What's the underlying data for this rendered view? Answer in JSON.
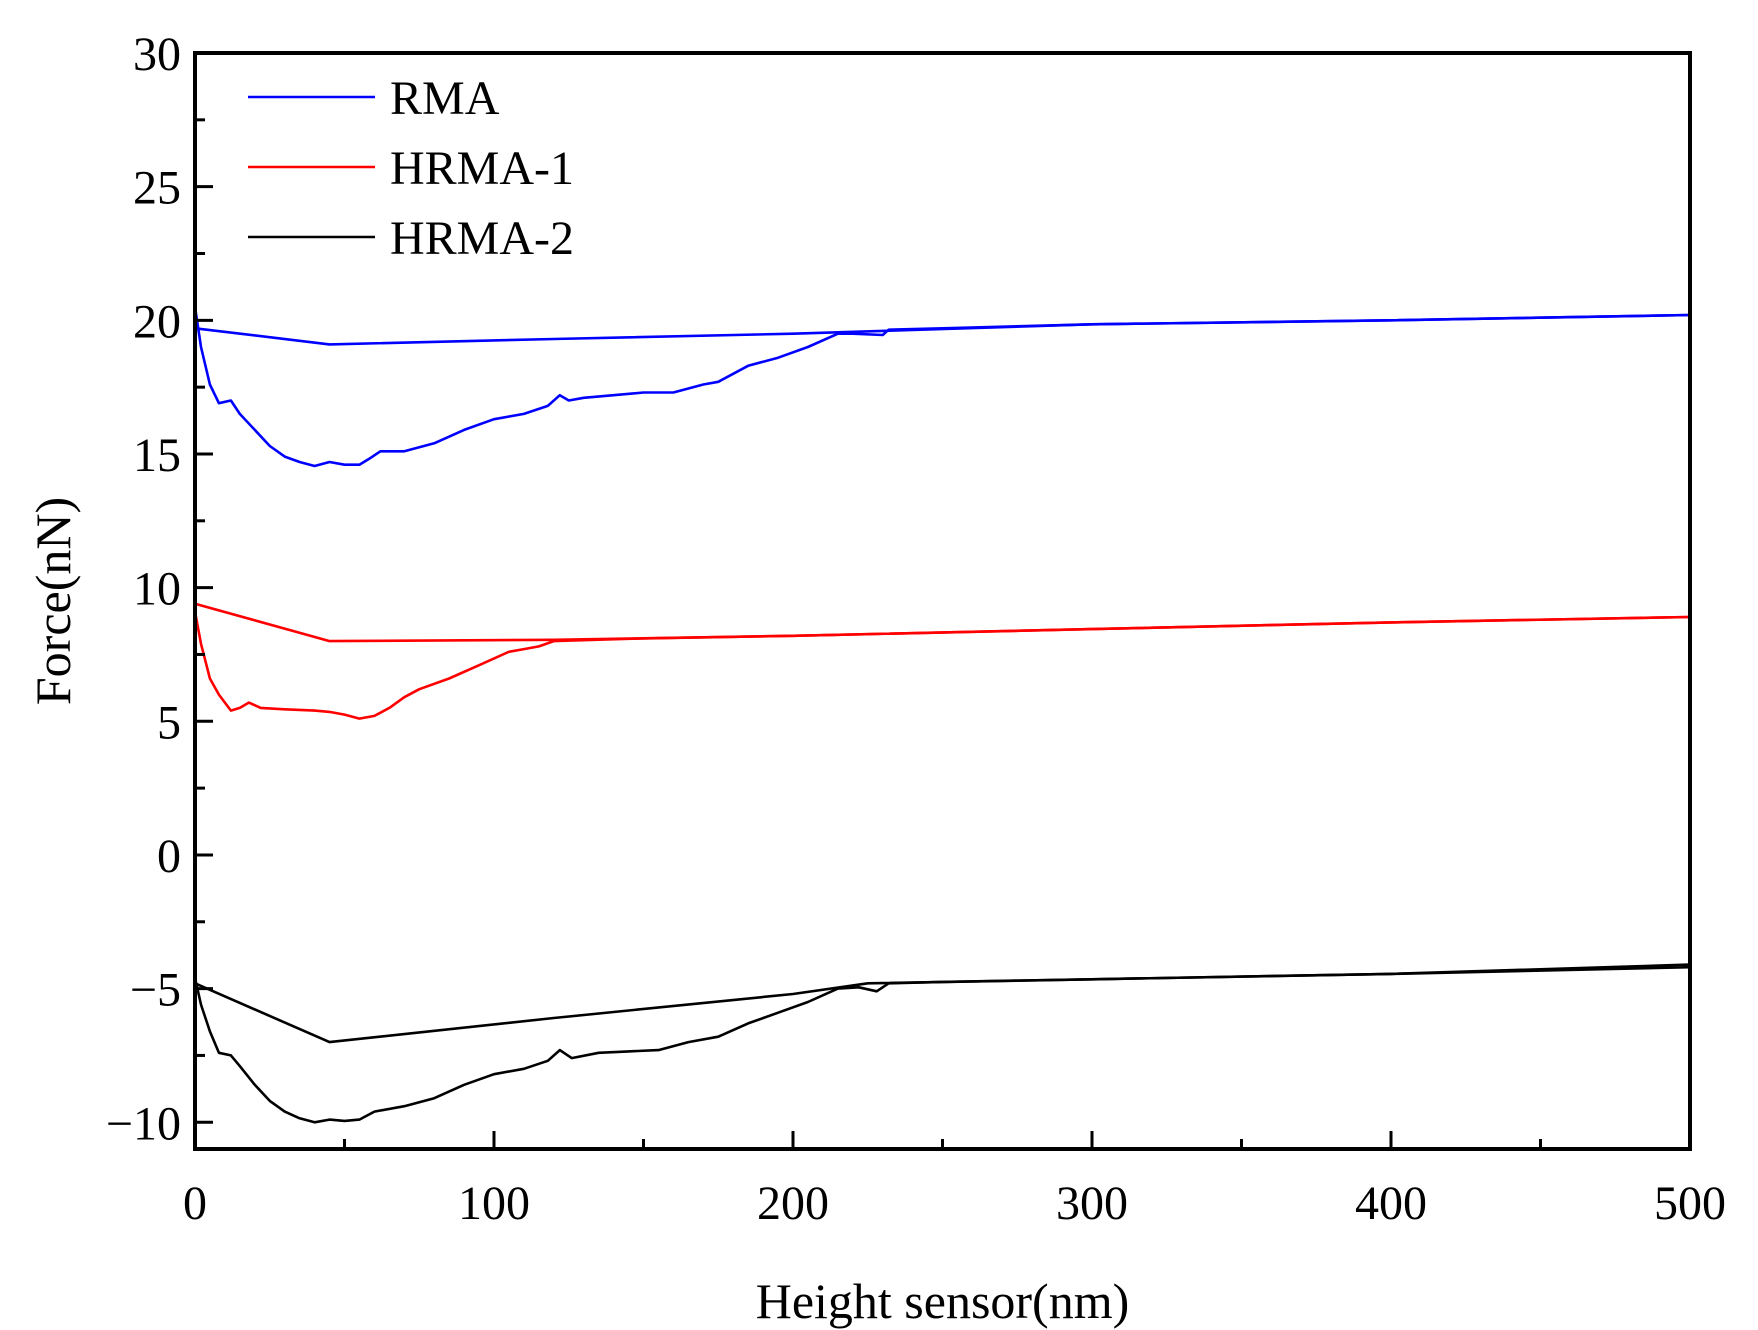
{
  "chart_data": {
    "type": "line",
    "xlabel": "Height sensor(nm)",
    "ylabel": "Force(nN)",
    "xlim": [
      0,
      500
    ],
    "ylim": [
      -11,
      30
    ],
    "x_ticks": [
      0,
      100,
      200,
      300,
      400,
      500
    ],
    "x_tick_labels": [
      "0",
      "100",
      "200",
      "300",
      "400",
      "500"
    ],
    "y_ticks": [
      -10,
      -5,
      0,
      5,
      10,
      15,
      20,
      25,
      30
    ],
    "y_tick_labels": [
      "−10",
      "−5",
      "0",
      "5",
      "10",
      "15",
      "20",
      "25",
      "30"
    ],
    "grid": false,
    "legend_position": "top-left",
    "series": [
      {
        "name": "RMA",
        "color": "#0000ff",
        "approach": [
          [
            0,
            19.7
          ],
          [
            45,
            19.1
          ],
          [
            120,
            19.3
          ],
          [
            200,
            19.5
          ],
          [
            300,
            19.85
          ],
          [
            400,
            20.0
          ],
          [
            500,
            20.2
          ]
        ],
        "retract": [
          [
            0,
            20.5
          ],
          [
            2,
            19.0
          ],
          [
            5,
            17.6
          ],
          [
            8,
            16.9
          ],
          [
            12,
            17.0
          ],
          [
            15,
            16.5
          ],
          [
            20,
            15.9
          ],
          [
            25,
            15.3
          ],
          [
            30,
            14.9
          ],
          [
            35,
            14.7
          ],
          [
            40,
            14.55
          ],
          [
            45,
            14.7
          ],
          [
            50,
            14.6
          ],
          [
            55,
            14.6
          ],
          [
            58,
            14.8
          ],
          [
            62,
            15.1
          ],
          [
            70,
            15.1
          ],
          [
            80,
            15.4
          ],
          [
            90,
            15.9
          ],
          [
            100,
            16.3
          ],
          [
            110,
            16.5
          ],
          [
            118,
            16.8
          ],
          [
            122,
            17.2
          ],
          [
            125,
            17.0
          ],
          [
            130,
            17.1
          ],
          [
            140,
            17.2
          ],
          [
            150,
            17.3
          ],
          [
            160,
            17.3
          ],
          [
            170,
            17.6
          ],
          [
            175,
            17.7
          ],
          [
            185,
            18.3
          ],
          [
            195,
            18.6
          ],
          [
            205,
            19.0
          ],
          [
            215,
            19.5
          ],
          [
            220,
            19.5
          ],
          [
            230,
            19.45
          ],
          [
            232,
            19.65
          ],
          [
            250,
            19.7
          ],
          [
            300,
            19.85
          ],
          [
            400,
            20.0
          ],
          [
            500,
            20.2
          ]
        ]
      },
      {
        "name": "HRMA-1",
        "color": "#ff0000",
        "approach": [
          [
            0,
            9.4
          ],
          [
            45,
            8.0
          ],
          [
            120,
            8.05
          ],
          [
            200,
            8.2
          ],
          [
            300,
            8.45
          ],
          [
            400,
            8.7
          ],
          [
            500,
            8.9
          ]
        ],
        "retract": [
          [
            0,
            9.1
          ],
          [
            2,
            7.9
          ],
          [
            5,
            6.6
          ],
          [
            8,
            6.0
          ],
          [
            12,
            5.4
          ],
          [
            15,
            5.5
          ],
          [
            18,
            5.7
          ],
          [
            22,
            5.5
          ],
          [
            30,
            5.45
          ],
          [
            40,
            5.4
          ],
          [
            45,
            5.35
          ],
          [
            50,
            5.25
          ],
          [
            55,
            5.1
          ],
          [
            60,
            5.2
          ],
          [
            65,
            5.5
          ],
          [
            70,
            5.9
          ],
          [
            75,
            6.2
          ],
          [
            85,
            6.6
          ],
          [
            95,
            7.1
          ],
          [
            105,
            7.6
          ],
          [
            110,
            7.7
          ],
          [
            115,
            7.8
          ],
          [
            120,
            8.0
          ],
          [
            150,
            8.1
          ],
          [
            200,
            8.2
          ],
          [
            300,
            8.45
          ],
          [
            400,
            8.7
          ],
          [
            500,
            8.9
          ]
        ]
      },
      {
        "name": "HRMA-2",
        "color": "#000000",
        "approach": [
          [
            0,
            -4.8
          ],
          [
            45,
            -7.0
          ],
          [
            120,
            -6.1
          ],
          [
            200,
            -5.2
          ],
          [
            225,
            -4.8
          ],
          [
            300,
            -4.65
          ],
          [
            400,
            -4.45
          ],
          [
            500,
            -4.1
          ]
        ],
        "retract": [
          [
            0,
            -4.6
          ],
          [
            2,
            -5.6
          ],
          [
            5,
            -6.6
          ],
          [
            8,
            -7.4
          ],
          [
            12,
            -7.5
          ],
          [
            15,
            -7.9
          ],
          [
            20,
            -8.6
          ],
          [
            25,
            -9.2
          ],
          [
            30,
            -9.6
          ],
          [
            35,
            -9.85
          ],
          [
            40,
            -10.0
          ],
          [
            45,
            -9.9
          ],
          [
            50,
            -9.95
          ],
          [
            55,
            -9.9
          ],
          [
            60,
            -9.6
          ],
          [
            70,
            -9.4
          ],
          [
            80,
            -9.1
          ],
          [
            90,
            -8.6
          ],
          [
            100,
            -8.2
          ],
          [
            110,
            -8.0
          ],
          [
            118,
            -7.7
          ],
          [
            122,
            -7.3
          ],
          [
            126,
            -7.6
          ],
          [
            135,
            -7.4
          ],
          [
            145,
            -7.35
          ],
          [
            155,
            -7.3
          ],
          [
            165,
            -7.0
          ],
          [
            175,
            -6.8
          ],
          [
            185,
            -6.3
          ],
          [
            195,
            -5.9
          ],
          [
            205,
            -5.5
          ],
          [
            215,
            -5.0
          ],
          [
            222,
            -4.95
          ],
          [
            228,
            -5.1
          ],
          [
            232,
            -4.8
          ],
          [
            250,
            -4.75
          ],
          [
            300,
            -4.65
          ],
          [
            400,
            -4.45
          ],
          [
            500,
            -4.2
          ]
        ]
      }
    ]
  }
}
